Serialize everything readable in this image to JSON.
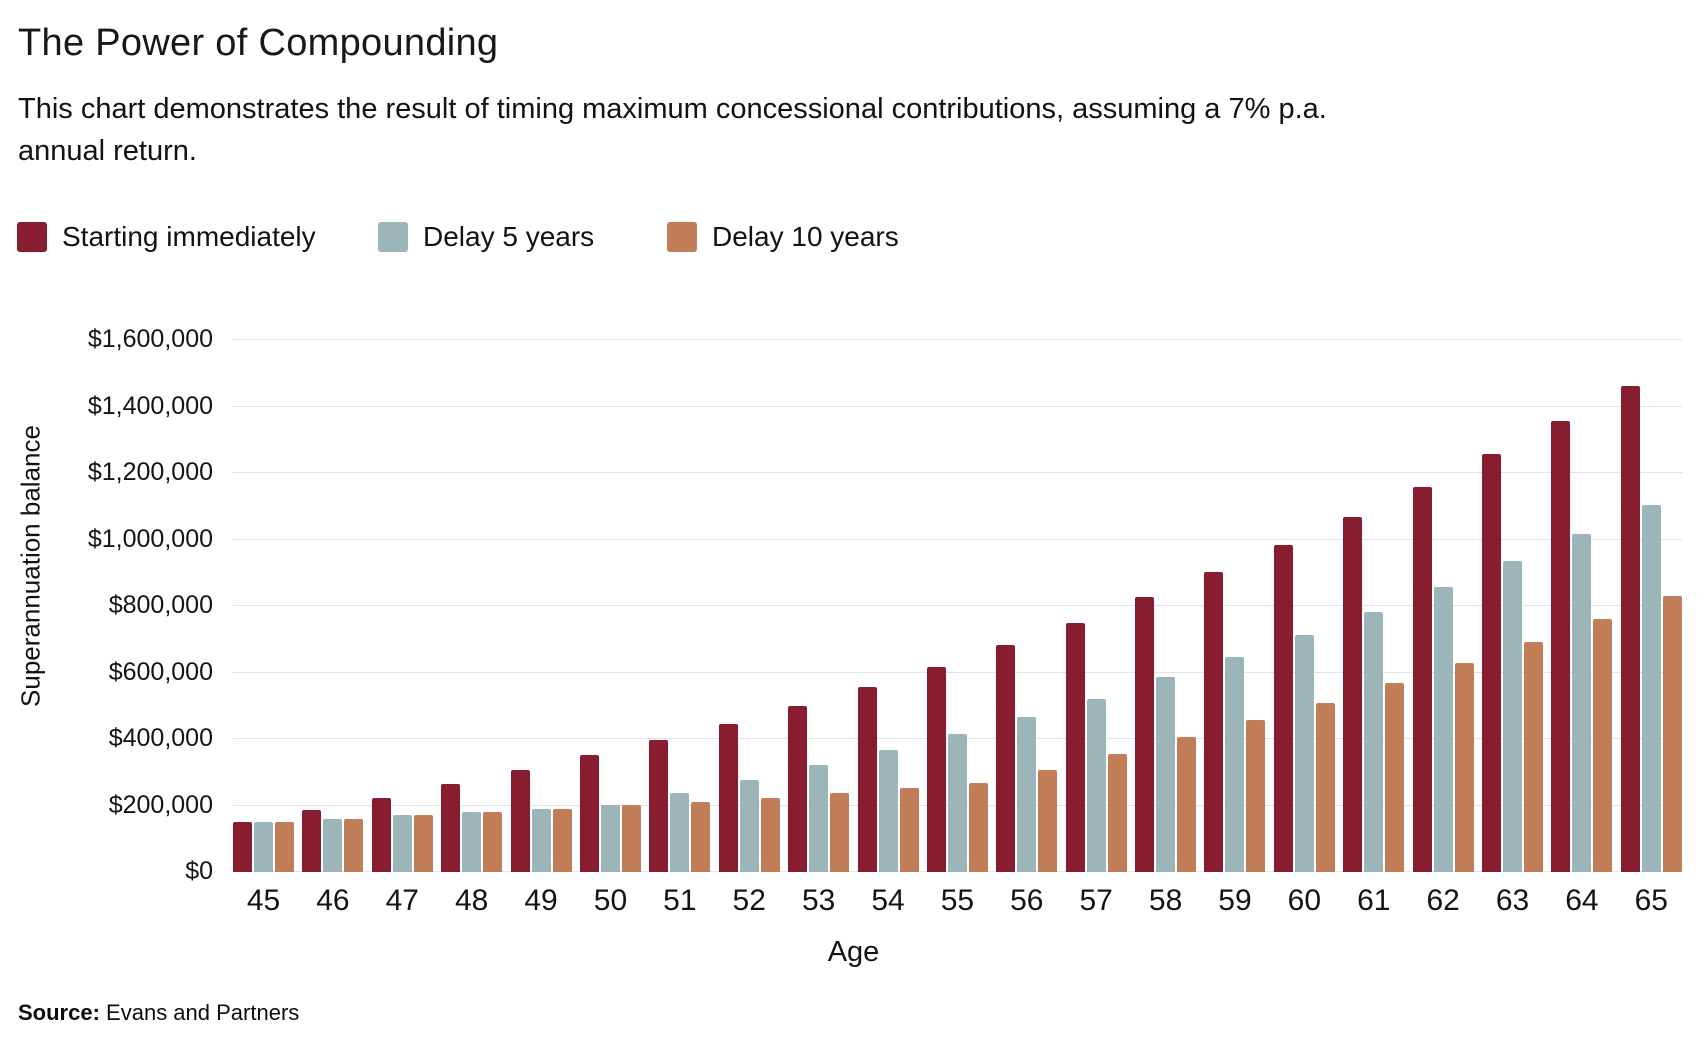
{
  "header": {
    "title": "The Power of Compounding",
    "subtitle_lines": [
      "This chart demonstrates the result of timing maximum concessional contributions, assuming a 7% p.a.",
      "annual return."
    ]
  },
  "footer": {
    "source_label": "Source:",
    "source_text": "Evans and Partners"
  },
  "colors": {
    "series_starting_immediately": "#881d2f",
    "series_delay_5_years": "#9cb5b9",
    "series_delay_10_years": "#c07d57",
    "gridline": "#e3e3e3",
    "text": "#121212"
  },
  "chart_data": {
    "type": "bar",
    "title": "The Power of Compounding",
    "xlabel": "Age",
    "ylabel": "Superannuation balance",
    "categories": [
      45,
      46,
      47,
      48,
      49,
      50,
      51,
      52,
      53,
      54,
      55,
      56,
      57,
      58,
      59,
      60,
      61,
      62,
      63,
      64,
      65
    ],
    "series": [
      {
        "name": "Starting immediately",
        "color": "#881d2f",
        "values": [
          150000,
          186000,
          224000,
          264000,
          306000,
          351000,
          397000,
          446000,
          500000,
          557000,
          618000,
          682000,
          748000,
          827000,
          902000,
          982000,
          1067000,
          1158000,
          1256000,
          1357000,
          1463000
        ]
      },
      {
        "name": "Delay 5 years",
        "color": "#9cb5b9",
        "values": [
          150000,
          160000,
          171000,
          179000,
          189000,
          200000,
          238000,
          277000,
          322000,
          367000,
          416000,
          467000,
          520000,
          586000,
          648000,
          713000,
          783000,
          856000,
          936000,
          1018000,
          1103000
        ]
      },
      {
        "name": "Delay 10 years",
        "color": "#c07d57",
        "values": [
          150000,
          160000,
          171000,
          179000,
          189000,
          200000,
          212000,
          224000,
          237000,
          252000,
          267000,
          307000,
          354000,
          405000,
          456000,
          509000,
          567000,
          629000,
          693000,
          761000,
          831000
        ]
      }
    ],
    "ylim": [
      0,
      1600000
    ],
    "y_tick_labels": [
      "$0",
      "$200,000",
      "$400,000",
      "$600,000",
      "$800,000",
      "$1,000,000",
      "$1,200,000",
      "$1,400,000",
      "$1,600,000"
    ],
    "grid": "horizontal",
    "legend_position": "top-left"
  }
}
